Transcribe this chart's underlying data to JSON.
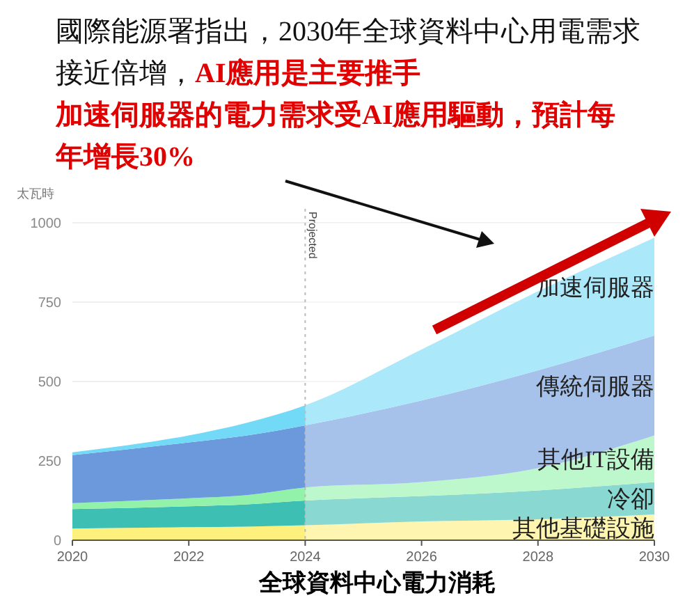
{
  "chart_data": {
    "type": "area",
    "stacked": true,
    "title": "國際能源署指出，2030年全球資料中心用電需求接近倍增，",
    "subtitle": "AI應用是主要推手",
    "annotations": [
      "加速伺服器的電力需求受AI應用驅動，預計每年增長30%"
    ],
    "xlabel": "全球資料中心電力消耗",
    "ylabel": "太瓦時",
    "x": [
      2020,
      2022,
      2023,
      2024,
      2026,
      2028,
      2030
    ],
    "series": [
      {
        "name": "其他基礎設施",
        "color": "#fdf07c",
        "values": [
          37,
          41,
          43,
          47,
          59,
          66,
          81
        ]
      },
      {
        "name": "冷卻",
        "color": "#3dbfb4",
        "values": [
          61,
          66,
          70,
          78,
          80,
          91,
          102
        ]
      },
      {
        "name": "其他IT設備",
        "color": "#92f2aa",
        "values": [
          19,
          25,
          29,
          41,
          44,
          70,
          147
        ]
      },
      {
        "name": "傳統伺服器",
        "color": "#6b99dc",
        "values": [
          151,
          176,
          188,
          196,
          257,
          308,
          315
        ]
      },
      {
        "name": "加速伺服器",
        "color": "#72d9f7",
        "values": [
          9,
          22,
          40,
          63,
          161,
          249,
          308
        ]
      }
    ],
    "xlim": [
      2020,
      2030
    ],
    "xticks": [
      2020,
      2022,
      2024,
      2026,
      2028,
      2030
    ],
    "ylim": [
      0,
      1000
    ],
    "yticks": [
      0,
      250,
      500,
      750,
      1000
    ],
    "grid": "y",
    "legend": false,
    "ref_lines": [
      {
        "axis": "x",
        "value": 2024,
        "label": "Projected",
        "line_style": "dotted"
      }
    ],
    "bands": [
      {
        "axis": "x",
        "from": 2024,
        "to": 2030,
        "color": "#ffffff"
      }
    ]
  }
}
